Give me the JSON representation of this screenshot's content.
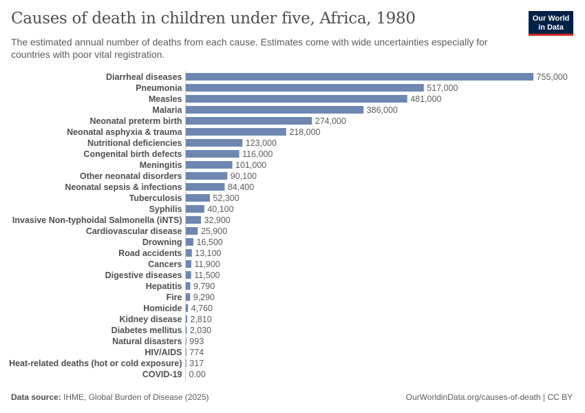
{
  "header": {
    "title": "Causes of death in children under five, Africa, 1980",
    "subtitle": "The estimated annual number of deaths from each cause. Estimates come with wide uncertainties especially for countries with poor vital registration.",
    "logo_text": "Our World in Data"
  },
  "footer": {
    "source_label": "Data source:",
    "source": "IHME, Global Burden of Disease (2025)",
    "link": "OurWorldinData.org/causes-of-death | CC BY"
  },
  "chart_data": {
    "type": "bar",
    "orientation": "horizontal",
    "bar_color": "#6d87b0",
    "categories": [
      "Diarrheal diseases",
      "Pneumonia",
      "Measles",
      "Malaria",
      "Neonatal preterm birth",
      "Neonatal asphyxia & trauma",
      "Nutritional deficiencies",
      "Congenital birth defects",
      "Meningitis",
      "Other neonatal disorders",
      "Neonatal sepsis & infections",
      "Tuberculosis",
      "Syphilis",
      "Invasive Non-typhoidal Salmonella (iNTS)",
      "Cardiovascular disease",
      "Drowning",
      "Road accidents",
      "Cancers",
      "Digestive diseases",
      "Hepatitis",
      "Fire",
      "Homicide",
      "Kidney disease",
      "Diabetes mellitus",
      "Natural disasters",
      "HIV/AIDS",
      "Heat-related deaths (hot or cold exposure)",
      "COVID-19"
    ],
    "values": [
      755000,
      517000,
      481000,
      386000,
      274000,
      218000,
      123000,
      116000,
      101000,
      90100,
      84400,
      52300,
      40100,
      32900,
      25900,
      16500,
      13100,
      11900,
      11500,
      9790,
      9290,
      4760,
      2810,
      2030,
      993,
      774,
      317,
      0
    ],
    "value_labels": [
      "755,000",
      "517,000",
      "481,000",
      "386,000",
      "274,000",
      "218,000",
      "123,000",
      "116,000",
      "101,000",
      "90,100",
      "84,400",
      "52,300",
      "40,100",
      "32,900",
      "25,900",
      "16,500",
      "13,100",
      "11,900",
      "11,500",
      "9,790",
      "9,290",
      "4,760",
      "2,810",
      "2,030",
      "993",
      "774",
      "317",
      "0.00"
    ]
  }
}
